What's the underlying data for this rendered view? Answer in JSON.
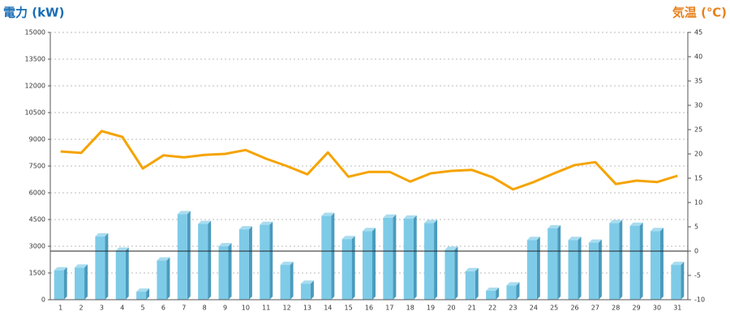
{
  "chart_data": {
    "type": "bar",
    "y_label": "電力 (kW)",
    "y2_label": "気温 (℃)",
    "categories": [
      "1",
      "2",
      "3",
      "4",
      "5",
      "6",
      "7",
      "8",
      "9",
      "10",
      "11",
      "12",
      "13",
      "14",
      "15",
      "16",
      "17",
      "18",
      "19",
      "20",
      "21",
      "22",
      "23",
      "24",
      "25",
      "26",
      "27",
      "28",
      "29",
      "30",
      "31"
    ],
    "series": [
      {
        "name": "電力",
        "type": "bar",
        "color": "#7ecbe8",
        "values": [
          1650,
          1800,
          3550,
          2750,
          450,
          2200,
          4800,
          4250,
          3000,
          3950,
          4200,
          1950,
          900,
          4700,
          3400,
          3850,
          4600,
          4550,
          4300,
          2800,
          1600,
          500,
          800,
          3350,
          4000,
          3350,
          3200,
          4300,
          4150,
          3850,
          1950
        ]
      },
      {
        "name": "気温",
        "type": "line",
        "axis": "y2",
        "color": "#f5a300",
        "values": [
          20.5,
          20.2,
          24.7,
          23.5,
          17,
          19.7,
          19.3,
          19.8,
          20,
          20.8,
          19,
          17.5,
          15.8,
          20.3,
          15.3,
          16.3,
          16.3,
          14.3,
          16,
          16.5,
          16.7,
          15.2,
          12.7,
          14.2,
          16,
          17.7,
          18.3,
          13.8,
          14.5,
          14.2,
          15.5
        ]
      }
    ],
    "ylim": [
      0,
      15000
    ],
    "yticks": [
      0,
      1500,
      3000,
      4500,
      6000,
      7500,
      9000,
      10500,
      12000,
      13500,
      15000
    ],
    "y2lim": [
      -10,
      45
    ],
    "y2ticks": [
      -10,
      -5,
      0,
      5,
      10,
      15,
      20,
      25,
      30,
      35,
      40,
      45
    ],
    "grid": true
  }
}
